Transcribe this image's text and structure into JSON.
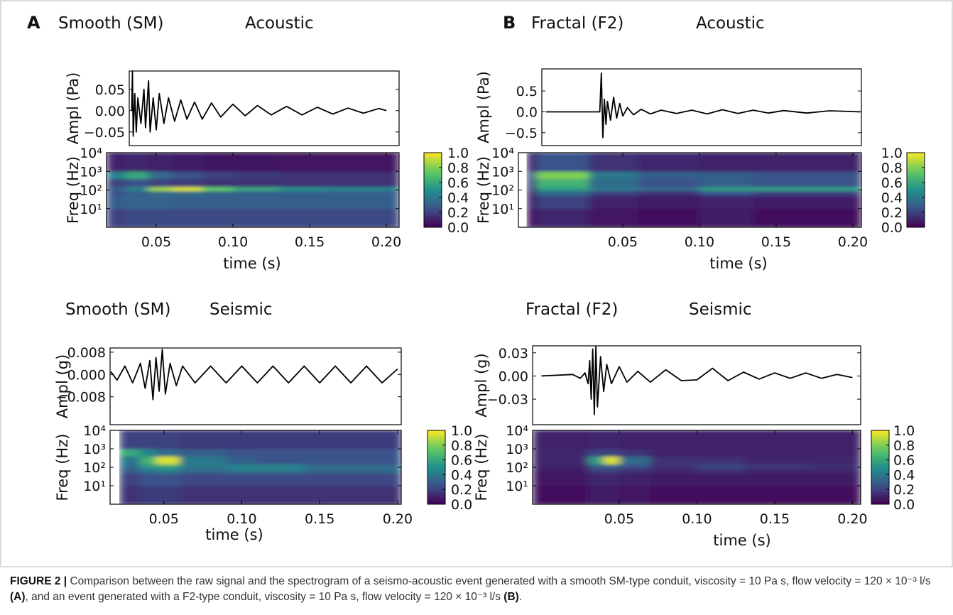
{
  "chart_data": [
    {
      "type": "line",
      "panel": "A",
      "title": "Smooth (SM)",
      "subtitle": "Acoustic",
      "ylabel": "Ampl (Pa)",
      "color": "#000000",
      "x": [
        0.034,
        0.0345,
        0.035,
        0.036,
        0.037,
        0.038,
        0.04,
        0.042,
        0.043,
        0.045,
        0.046,
        0.048,
        0.05,
        0.052,
        0.055,
        0.058,
        0.062,
        0.066,
        0.07,
        0.075,
        0.08,
        0.086,
        0.092,
        0.1,
        0.108,
        0.116,
        0.125,
        0.135,
        0.145,
        0.155,
        0.165,
        0.175,
        0.185,
        0.195,
        0.2
      ],
      "values": [
        0.0,
        0.093,
        -0.06,
        0.04,
        -0.05,
        0.03,
        -0.03,
        0.05,
        -0.04,
        0.07,
        -0.05,
        0.03,
        -0.045,
        0.04,
        -0.03,
        0.03,
        -0.025,
        0.025,
        -0.02,
        0.02,
        -0.02,
        0.018,
        -0.015,
        0.015,
        -0.012,
        0.012,
        -0.01,
        0.01,
        -0.01,
        0.008,
        -0.008,
        0.006,
        -0.006,
        0.005,
        0.0
      ],
      "xlim": [
        0.0324,
        0.2083
      ],
      "ylim": [
        -0.082,
        0.093
      ],
      "yticks": [
        {
          "value": -0.05,
          "label": "−0.05"
        },
        {
          "value": 0,
          "label": "0.00"
        },
        0.05
      ]
    },
    {
      "type": "heatmap",
      "ylabel": "Freq (Hz)",
      "xlabel": "time (s)",
      "yscale": "log",
      "colormap": "viridis",
      "clim": [
        0,
        1
      ],
      "x_edges": [
        0.0176,
        0.03,
        0.045,
        0.06,
        0.08,
        0.1,
        0.13,
        0.16,
        0.2083
      ],
      "y_edges": [
        1,
        10,
        50,
        90,
        150,
        400,
        1000,
        10000
      ],
      "z": [
        [
          0.2,
          0.22,
          0.22,
          0.22,
          0.22,
          0.22,
          0.22,
          0.22
        ],
        [
          0.3,
          0.32,
          0.32,
          0.3,
          0.3,
          0.3,
          0.3,
          0.3
        ],
        [
          0.25,
          0.3,
          0.35,
          0.35,
          0.32,
          0.3,
          0.3,
          0.3
        ],
        [
          0.3,
          0.45,
          0.85,
          0.95,
          0.75,
          0.6,
          0.5,
          0.45
        ],
        [
          0.2,
          0.25,
          0.2,
          0.18,
          0.15,
          0.15,
          0.15,
          0.15
        ],
        [
          0.45,
          0.6,
          0.35,
          0.25,
          0.2,
          0.18,
          0.15,
          0.15
        ],
        [
          0.1,
          0.12,
          0.1,
          0.08,
          0.07,
          0.07,
          0.06,
          0.06
        ]
      ],
      "xlim": [
        0.0176,
        0.2083
      ],
      "ylim": [
        1,
        10000
      ],
      "xticks": [
        0.05,
        {
          "value": 0.1,
          "label": "0.10"
        },
        0.15,
        {
          "value": 0.2,
          "label": "0.20"
        }
      ],
      "yticks": [
        {
          "value": 10,
          "label": "10¹"
        },
        {
          "value": 100,
          "label": "10²"
        },
        {
          "value": 1000,
          "label": "10³"
        },
        {
          "value": 10000,
          "label": "10⁴"
        }
      ],
      "cticks": [
        {
          "value": 0,
          "label": "0.0"
        },
        0.2,
        0.4,
        0.6,
        0.8,
        {
          "value": 1,
          "label": "1.0"
        }
      ]
    },
    {
      "type": "line",
      "panel": "B",
      "title": "Fractal (F2)",
      "subtitle": "Acoustic",
      "ylabel": "Ampl (Pa)",
      "color": "#000000",
      "x": [
        0.0,
        0.02,
        0.035,
        0.036,
        0.037,
        0.038,
        0.039,
        0.04,
        0.042,
        0.044,
        0.046,
        0.048,
        0.05,
        0.053,
        0.057,
        0.062,
        0.068,
        0.075,
        0.085,
        0.095,
        0.105,
        0.115,
        0.125,
        0.135,
        0.145,
        0.155,
        0.17,
        0.185,
        0.205
      ],
      "values": [
        0,
        0,
        0.0,
        0.93,
        -0.62,
        0.3,
        -0.3,
        0.25,
        -0.2,
        0.35,
        -0.15,
        0.2,
        -0.1,
        0.1,
        -0.07,
        0.06,
        -0.05,
        0.04,
        -0.04,
        0.04,
        -0.05,
        0.05,
        -0.04,
        0.04,
        -0.03,
        0.03,
        -0.03,
        0.025,
        0.0
      ],
      "xlim": [
        -0.0028,
        0.2056
      ],
      "ylim": [
        -0.81,
        1.03
      ],
      "yticks": [
        {
          "value": -0.5,
          "label": "−0.5"
        },
        {
          "value": 0,
          "label": "0.0"
        },
        0.5
      ]
    },
    {
      "type": "heatmap",
      "ylabel": "Freq (Hz)",
      "xlabel": "time (s)",
      "yscale": "log",
      "colormap": "viridis",
      "clim": [
        0,
        1
      ],
      "x_edges": [
        -0.0125,
        -0.0065,
        0.028,
        0.06,
        0.1,
        0.135,
        0.2056
      ],
      "y_edges": [
        1,
        10,
        50,
        90,
        150,
        400,
        1000,
        10000
      ],
      "z": [
        [
          0.05,
          0.12,
          0.06,
          0.05,
          0.08,
          0.05
        ],
        [
          0.08,
          0.2,
          0.1,
          0.08,
          0.1,
          0.08
        ],
        [
          0.1,
          0.35,
          0.2,
          0.15,
          0.25,
          0.2
        ],
        [
          0.15,
          0.55,
          0.4,
          0.35,
          0.55,
          0.55
        ],
        [
          0.2,
          0.65,
          0.35,
          0.25,
          0.3,
          0.25
        ],
        [
          0.25,
          0.8,
          0.4,
          0.3,
          0.3,
          0.25
        ],
        [
          0.1,
          0.25,
          0.15,
          0.12,
          0.1,
          0.1
        ]
      ],
      "xlim": [
        -0.018,
        0.2056
      ],
      "ylim": [
        1,
        10000
      ],
      "xticks": [
        0.05,
        {
          "value": 0.1,
          "label": "0.10"
        },
        0.15,
        {
          "value": 0.2,
          "label": "0.20"
        }
      ],
      "yticks": [
        {
          "value": 10,
          "label": "10¹"
        },
        {
          "value": 100,
          "label": "10²"
        },
        {
          "value": 1000,
          "label": "10³"
        },
        {
          "value": 10000,
          "label": "10⁴"
        }
      ],
      "cticks": [
        {
          "value": 0,
          "label": "0.0"
        },
        0.2,
        0.4,
        0.6,
        0.8,
        {
          "value": 1,
          "label": "1.0"
        }
      ]
    },
    {
      "type": "line",
      "title": "Smooth (SM)",
      "subtitle": "Seismic",
      "ylabel": "Ampl (g)",
      "color": "#000000",
      "x": [
        0.016,
        0.02,
        0.025,
        0.03,
        0.035,
        0.038,
        0.041,
        0.043,
        0.045,
        0.047,
        0.049,
        0.051,
        0.054,
        0.058,
        0.062,
        0.07,
        0.08,
        0.09,
        0.1,
        0.11,
        0.12,
        0.13,
        0.14,
        0.15,
        0.16,
        0.17,
        0.18,
        0.19,
        0.2
      ],
      "values": [
        0.001,
        -0.002,
        0.003,
        -0.003,
        0.004,
        -0.005,
        0.005,
        -0.009,
        0.006,
        -0.006,
        0.009,
        -0.007,
        0.004,
        -0.004,
        0.003,
        -0.003,
        0.003,
        -0.003,
        0.003,
        -0.003,
        0.003,
        -0.003,
        0.003,
        -0.003,
        0.003,
        -0.003,
        0.003,
        -0.003,
        0.002
      ],
      "xlim": [
        0.0155,
        0.2023
      ],
      "ylim": [
        -0.018,
        0.0095
      ],
      "yticks": [
        {
          "value": -0.008,
          "label": "−0.008"
        },
        {
          "value": 0,
          "label": "0.000"
        },
        0.008
      ]
    },
    {
      "type": "heatmap",
      "ylabel": "Freq (Hz)",
      "xlabel": "time (s)",
      "yscale": "log",
      "colormap": "viridis",
      "clim": [
        0,
        1
      ],
      "x_edges": [
        0.0215,
        0.035,
        0.045,
        0.06,
        0.09,
        0.11,
        0.14,
        0.17,
        0.2023
      ],
      "y_edges": [
        1,
        10,
        50,
        90,
        150,
        400,
        1000,
        10000
      ],
      "z": [
        [
          0.15,
          0.18,
          0.18,
          0.15,
          0.15,
          0.15,
          0.15,
          0.15
        ],
        [
          0.2,
          0.25,
          0.25,
          0.22,
          0.22,
          0.22,
          0.22,
          0.22
        ],
        [
          0.3,
          0.4,
          0.45,
          0.35,
          0.4,
          0.4,
          0.35,
          0.35
        ],
        [
          0.35,
          0.55,
          0.6,
          0.4,
          0.45,
          0.45,
          0.35,
          0.35
        ],
        [
          0.4,
          0.65,
          0.95,
          0.4,
          0.3,
          0.25,
          0.25,
          0.25
        ],
        [
          0.6,
          0.45,
          0.35,
          0.3,
          0.25,
          0.25,
          0.25,
          0.25
        ],
        [
          0.2,
          0.2,
          0.2,
          0.18,
          0.18,
          0.18,
          0.18,
          0.18
        ]
      ],
      "xlim": [
        0.0155,
        0.2023
      ],
      "ylim": [
        1,
        10000
      ],
      "xticks": [
        0.05,
        {
          "value": 0.1,
          "label": "0.10"
        },
        0.15,
        {
          "value": 0.2,
          "label": "0.20"
        }
      ],
      "yticks": [
        {
          "value": 10,
          "label": "10¹"
        },
        {
          "value": 100,
          "label": "10²"
        },
        {
          "value": 1000,
          "label": "10³"
        },
        {
          "value": 10000,
          "label": "10⁴"
        }
      ],
      "cticks": [
        {
          "value": 0,
          "label": "0.0"
        },
        0.2,
        0.4,
        0.6,
        0.8,
        {
          "value": 1,
          "label": "1.0"
        }
      ]
    },
    {
      "type": "line",
      "title": "Fractal (F2)",
      "subtitle": "Seismic",
      "ylabel": "Ampl (g)",
      "color": "#000000",
      "x": [
        0.0,
        0.02,
        0.025,
        0.028,
        0.03,
        0.031,
        0.032,
        0.033,
        0.034,
        0.035,
        0.036,
        0.038,
        0.04,
        0.042,
        0.045,
        0.05,
        0.055,
        0.062,
        0.07,
        0.08,
        0.09,
        0.1,
        0.11,
        0.12,
        0.13,
        0.14,
        0.15,
        0.16,
        0.17,
        0.18,
        0.19,
        0.2
      ],
      "values": [
        0,
        0.002,
        -0.003,
        0.004,
        -0.01,
        0.02,
        -0.03,
        0.035,
        -0.05,
        0.038,
        -0.04,
        0.025,
        -0.02,
        0.015,
        -0.01,
        0.012,
        -0.008,
        0.006,
        -0.008,
        0.008,
        -0.006,
        -0.005,
        0.01,
        -0.006,
        0.005,
        -0.004,
        0.004,
        -0.003,
        0.004,
        -0.003,
        0.002,
        -0.002
      ],
      "xlim": [
        -0.0057,
        0.2053
      ],
      "ylim": [
        -0.063,
        0.039
      ],
      "yticks": [
        {
          "value": -0.03,
          "label": "−0.03"
        },
        {
          "value": 0,
          "label": "0.00"
        },
        0.03
      ]
    },
    {
      "type": "heatmap",
      "ylabel": "Freq (Hz)",
      "xlabel": "time (s)",
      "yscale": "log",
      "colormap": "viridis",
      "clim": [
        0,
        1
      ],
      "x_edges": [
        -0.0057,
        0.03,
        0.04,
        0.05,
        0.07,
        0.1,
        0.13,
        0.17,
        0.2053
      ],
      "y_edges": [
        1,
        10,
        50,
        90,
        150,
        400,
        1000,
        10000
      ],
      "z": [
        [
          0.05,
          0.08,
          0.08,
          0.06,
          0.05,
          0.05,
          0.05,
          0.05
        ],
        [
          0.06,
          0.12,
          0.12,
          0.1,
          0.08,
          0.08,
          0.08,
          0.08
        ],
        [
          0.08,
          0.2,
          0.2,
          0.15,
          0.12,
          0.15,
          0.12,
          0.12
        ],
        [
          0.1,
          0.3,
          0.35,
          0.25,
          0.15,
          0.22,
          0.18,
          0.15
        ],
        [
          0.12,
          0.55,
          0.95,
          0.35,
          0.15,
          0.15,
          0.12,
          0.12
        ],
        [
          0.12,
          0.2,
          0.2,
          0.15,
          0.1,
          0.1,
          0.1,
          0.1
        ],
        [
          0.1,
          0.12,
          0.12,
          0.1,
          0.1,
          0.1,
          0.1,
          0.1
        ]
      ],
      "xlim": [
        -0.0057,
        0.2053
      ],
      "ylim": [
        1,
        10000
      ],
      "xticks": [
        0.05,
        {
          "value": 0.1,
          "label": "0.10"
        },
        0.15,
        {
          "value": 0.2,
          "label": "0.20"
        }
      ],
      "yticks": [
        {
          "value": 10,
          "label": "10¹"
        },
        {
          "value": 100,
          "label": "10²"
        },
        {
          "value": 1000,
          "label": "10³"
        },
        {
          "value": 10000,
          "label": "10⁴"
        }
      ],
      "cticks": [
        {
          "value": 0,
          "label": "0.0"
        },
        0.2,
        0.4,
        0.6,
        0.8,
        {
          "value": 1,
          "label": "1.0"
        }
      ]
    }
  ],
  "caption": {
    "label": "FIGURE 2 |",
    "text_1": "Comparison between the raw signal and the spectrogram of a seismo-acoustic event generated with a smooth SM-type conduit, viscosity = 10 Pa s, flow velocity = 120 × 10⁻³ l/s",
    "ref_a": "(A)",
    "text_2": ", and an event generated with a F2-type conduit, viscosity = 10 Pa s, flow velocity = 120 × 10⁻³ l/s",
    "ref_b": "(B)",
    "text_3": "."
  }
}
